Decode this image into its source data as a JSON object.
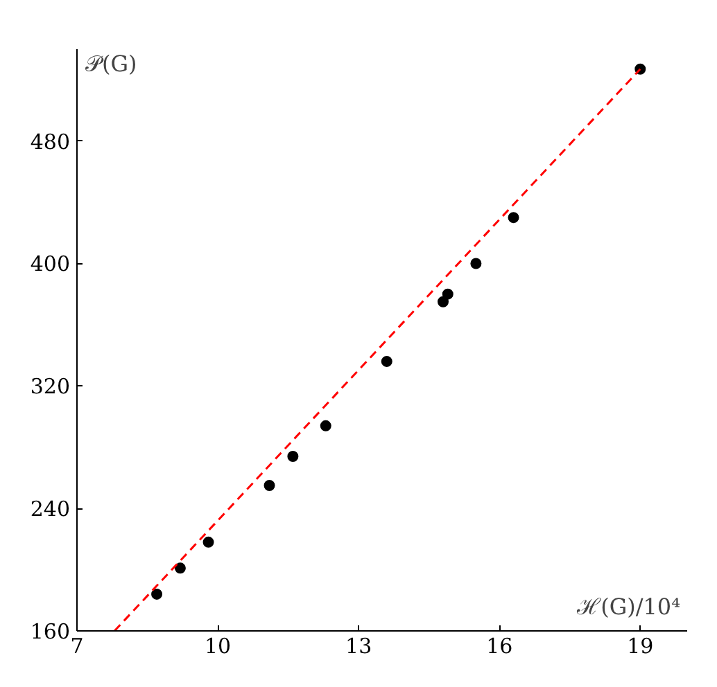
{
  "chart_data": {
    "type": "scatter",
    "xlabel": "ℋ(G)/10⁴",
    "ylabel": "𝒫(G)",
    "xlim": [
      7,
      20
    ],
    "ylim": [
      160,
      540
    ],
    "xticks": [
      7,
      10,
      13,
      16,
      19
    ],
    "yticks": [
      160,
      240,
      320,
      400,
      480
    ],
    "grid": false,
    "marker": "circle",
    "series": [
      {
        "color": "#000000",
        "x": [
          8.7,
          9.2,
          9.8,
          11.1,
          11.6,
          12.3,
          13.6,
          14.8,
          14.9,
          15.5,
          16.3,
          19.0
        ],
        "values": [
          184,
          201,
          218,
          255,
          274,
          294,
          336,
          375,
          380,
          400,
          430,
          527
        ]
      },
      {
        "type": "line",
        "color": "#ff0000",
        "line_style": "dashed",
        "marker": "none",
        "x": [
          7.8,
          19.0
        ],
        "values": [
          160,
          527
        ]
      }
    ]
  }
}
